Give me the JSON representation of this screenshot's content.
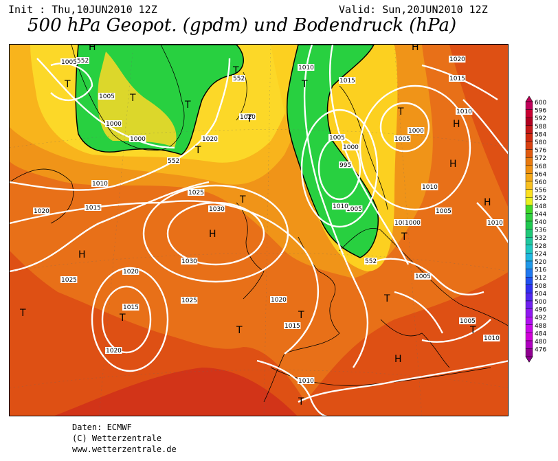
{
  "header": {
    "init": "Init : Thu,10JUN2010 12Z",
    "valid": "Valid: Sun,20JUN2010 12Z",
    "title": "500 hPa Geopot. (gpdm) und Bodendruck (hPa)"
  },
  "footer": {
    "source": "Daten: ECMWF",
    "copyright": "(C) Wetterzentrale",
    "url": "www.wetterzentrale.de"
  },
  "legend": {
    "levels": [
      {
        "v": "600",
        "c": "#c0005a"
      },
      {
        "v": "596",
        "c": "#c80032"
      },
      {
        "v": "592",
        "c": "#b00020"
      },
      {
        "v": "588",
        "c": "#c41818"
      },
      {
        "v": "584",
        "c": "#d02a10"
      },
      {
        "v": "580",
        "c": "#d84010"
      },
      {
        "v": "576",
        "c": "#e05a10"
      },
      {
        "v": "572",
        "c": "#e87a10"
      },
      {
        "v": "568",
        "c": "#f09010"
      },
      {
        "v": "564",
        "c": "#f4a818"
      },
      {
        "v": "560",
        "c": "#f8c020"
      },
      {
        "v": "556",
        "c": "#fce020"
      },
      {
        "v": "552",
        "c": "#e8f020"
      },
      {
        "v": "548",
        "c": "#40d828"
      },
      {
        "v": "544",
        "c": "#30d040"
      },
      {
        "v": "540",
        "c": "#20c850"
      },
      {
        "v": "536",
        "c": "#20c878"
      },
      {
        "v": "532",
        "c": "#20c8a0"
      },
      {
        "v": "528",
        "c": "#20c8c0"
      },
      {
        "v": "524",
        "c": "#20b8e0"
      },
      {
        "v": "520",
        "c": "#2098e8"
      },
      {
        "v": "516",
        "c": "#2078f0"
      },
      {
        "v": "512",
        "c": "#2050f0"
      },
      {
        "v": "508",
        "c": "#3030f0"
      },
      {
        "v": "504",
        "c": "#5028f0"
      },
      {
        "v": "500",
        "c": "#7020f0"
      },
      {
        "v": "496",
        "c": "#9018f0"
      },
      {
        "v": "492",
        "c": "#b010f0"
      },
      {
        "v": "488",
        "c": "#c808e8"
      },
      {
        "v": "484",
        "c": "#d000d8"
      },
      {
        "v": "480",
        "c": "#b000c0"
      },
      {
        "v": "476",
        "c": "#900090"
      }
    ]
  },
  "map": {
    "colors": {
      "deep_red": "#c81818",
      "red": "#d83c14",
      "orange_red": "#e46014",
      "orange": "#ee8a14",
      "light_orange": "#f6aa1c",
      "yellow": "#fcd628",
      "green": "#28d040",
      "isobar": "#ffffff",
      "outline": "#000000"
    },
    "pressure_labels": [
      "1005",
      "552",
      "1005",
      "1000",
      "1000",
      "1010",
      "1020",
      "1020",
      "552",
      "552",
      "1010",
      "1015",
      "1020",
      "1015",
      "1005",
      "1000",
      "995",
      "1000",
      "1005",
      "1005",
      "1010",
      "1005",
      "1010",
      "1010",
      "1005",
      "1010",
      "1015",
      "1020",
      "1025",
      "1030",
      "1030",
      "1020",
      "1025",
      "1015",
      "1020",
      "1025",
      "1020",
      "1015",
      "1010",
      "1000",
      "1005",
      "1005",
      "1010",
      "552"
    ],
    "systems": [
      "H",
      "T",
      "T",
      "T",
      "T",
      "T",
      "T",
      "H",
      "T",
      "T",
      "H",
      "H",
      "H",
      "H",
      "T",
      "H",
      "T",
      "T",
      "T",
      "T",
      "T",
      "T",
      "H",
      "T",
      "T"
    ]
  }
}
